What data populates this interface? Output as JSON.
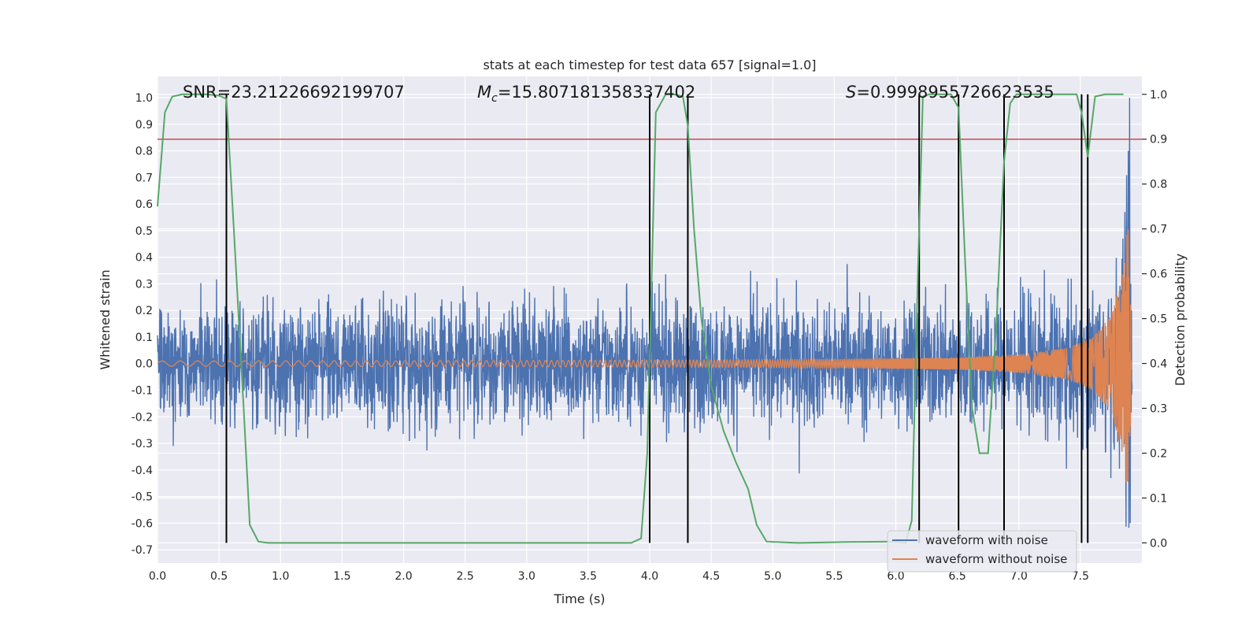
{
  "chart_data": {
    "type": "line",
    "title": "stats at each timestep for test data 657 [signal=1.0]",
    "xlabel": "Time (s)",
    "ylabel": "Whitened strain",
    "ylabel_right": "Detection probability",
    "xlim": [
      0.0,
      8.0
    ],
    "ylim": [
      -0.75,
      1.08
    ],
    "ylim_right": [
      -0.045,
      1.04
    ],
    "xticks": [
      "0.0",
      "0.5",
      "1.0",
      "1.5",
      "2.0",
      "2.5",
      "3.0",
      "3.5",
      "4.0",
      "4.5",
      "5.0",
      "5.5",
      "6.0",
      "6.5",
      "7.0",
      "7.5"
    ],
    "yticks": [
      "-0.7",
      "-0.6",
      "-0.5",
      "-0.4",
      "-0.3",
      "-0.2",
      "-0.1",
      "0.0",
      "0.1",
      "0.2",
      "0.3",
      "0.4",
      "0.5",
      "0.6",
      "0.7",
      "0.8",
      "0.9",
      "1.0"
    ],
    "yticks_right": [
      "0.0",
      "0.1",
      "0.2",
      "0.3",
      "0.4",
      "0.5",
      "0.6",
      "0.7",
      "0.8",
      "0.9",
      "1.0"
    ],
    "annotations": {
      "snr": "SNR=23.21226692199707",
      "mc_symbol": "M",
      "mc_sub": "c",
      "mc_value": "=15.807181358337402",
      "s_symbol": "S",
      "s_value": "=0.9998955726623535"
    },
    "threshold_right": 0.9,
    "colors": {
      "noisy": "#4c72b0",
      "clean": "#dd8452",
      "probability": "#55a868",
      "threshold": "#c44e52",
      "vlines": "#000000",
      "background": "#eaeaf2",
      "grid": "#ffffff"
    },
    "detection_times": [
      0.56,
      4.0,
      4.31,
      6.19,
      6.51,
      6.88,
      7.51,
      7.56
    ],
    "probability": {
      "x": [
        0.0,
        0.06,
        0.12,
        0.2,
        0.3,
        0.4,
        0.5,
        0.56,
        0.62,
        0.7,
        0.75,
        0.82,
        0.9,
        1.2,
        2.0,
        3.0,
        3.5,
        3.85,
        3.93,
        3.98,
        4.05,
        4.13,
        4.2,
        4.27,
        4.31,
        4.36,
        4.42,
        4.5,
        4.6,
        4.7,
        4.8,
        4.87,
        4.95,
        5.2,
        5.6,
        6.0,
        6.08,
        6.13,
        6.18,
        6.22,
        6.27,
        6.35,
        6.45,
        6.51,
        6.56,
        6.62,
        6.68,
        6.75,
        6.82,
        6.88,
        6.93,
        6.98,
        7.05,
        7.15,
        7.3,
        7.4,
        7.47,
        7.51,
        7.56,
        7.62,
        7.7,
        7.85
      ],
      "y": [
        0.75,
        0.96,
        0.995,
        1.0,
        1.0,
        1.0,
        0.997,
        0.99,
        0.7,
        0.3,
        0.04,
        0.003,
        0.0,
        0.0,
        0.0,
        0.0,
        0.0,
        0.0,
        0.01,
        0.2,
        0.96,
        1.0,
        1.0,
        0.995,
        0.93,
        0.7,
        0.5,
        0.35,
        0.25,
        0.18,
        0.12,
        0.04,
        0.003,
        0.0,
        0.002,
        0.003,
        0.0,
        0.05,
        0.6,
        0.995,
        1.0,
        1.0,
        1.0,
        0.97,
        0.65,
        0.3,
        0.2,
        0.2,
        0.5,
        0.85,
        0.98,
        1.0,
        1.0,
        1.0,
        1.0,
        1.0,
        1.0,
        0.96,
        0.86,
        0.995,
        1.0,
        1.0
      ]
    },
    "noisy_envelope": {
      "x": [
        0.0,
        1.0,
        2.0,
        3.0,
        4.0,
        5.0,
        6.0,
        7.0,
        7.5,
        7.7,
        7.8,
        7.85,
        7.88,
        7.9,
        7.92,
        8.0
      ],
      "upper": [
        0.3,
        0.3,
        0.3,
        0.3,
        0.3,
        0.3,
        0.3,
        0.32,
        0.34,
        0.36,
        0.4,
        0.48,
        0.58,
        0.68,
        0.3,
        0.25
      ],
      "lower": [
        -0.28,
        -0.28,
        -0.28,
        -0.28,
        -0.28,
        -0.28,
        -0.28,
        -0.3,
        -0.32,
        -0.35,
        -0.4,
        -0.45,
        -0.55,
        -0.65,
        -0.3,
        -0.25
      ]
    },
    "clean_envelope": {
      "x": [
        0.0,
        2.0,
        4.0,
        5.5,
        6.5,
        7.0,
        7.4,
        7.6,
        7.75,
        7.85,
        7.89,
        7.92,
        8.0
      ],
      "amp": [
        0.01,
        0.011,
        0.013,
        0.016,
        0.023,
        0.035,
        0.06,
        0.1,
        0.18,
        0.35,
        0.55,
        0.0,
        0.0
      ]
    },
    "legend": {
      "position": "lower-right",
      "entries": [
        {
          "label": "waveform with noise",
          "color": "#4c72b0"
        },
        {
          "label": "waveform without noise",
          "color": "#dd8452"
        }
      ]
    },
    "grid": true
  }
}
